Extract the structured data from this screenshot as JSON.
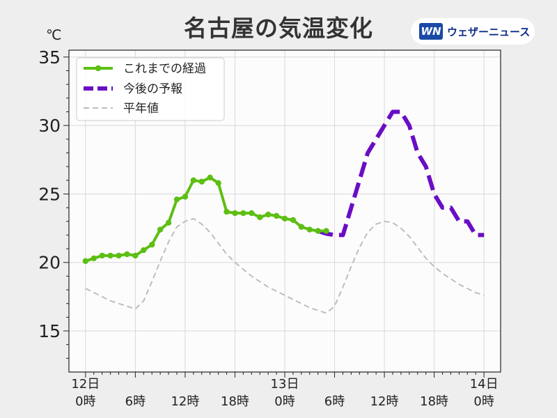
{
  "title": "名古屋の気温変化",
  "brand": {
    "logo": "WN",
    "name": "ウェザーニュース"
  },
  "unit": "℃",
  "colors": {
    "observed": "#5cbf12",
    "forecast": "#6a0dc4",
    "normal": "#bdbdbd"
  },
  "chart_data": {
    "type": "line",
    "title": "名古屋の気温変化",
    "ylabel": "℃",
    "ylim": [
      12,
      35.5
    ],
    "xlim": [
      -2,
      50
    ],
    "yticks": [
      15,
      20,
      25,
      30,
      35
    ],
    "grid": true,
    "legend_position": "top-left",
    "x_ticks": [
      {
        "x": 0,
        "label": "12日\n0時"
      },
      {
        "x": 6,
        "label": "6時"
      },
      {
        "x": 12,
        "label": "12時"
      },
      {
        "x": 18,
        "label": "18時"
      },
      {
        "x": 24,
        "label": "13日\n0時"
      },
      {
        "x": 30,
        "label": "6時"
      },
      {
        "x": 36,
        "label": "12時"
      },
      {
        "x": 42,
        "label": "18時"
      },
      {
        "x": 48,
        "label": "14日\n0時"
      }
    ],
    "series": [
      {
        "name": "これまでの経過",
        "style": "solid-markers",
        "x": [
          0,
          1,
          2,
          3,
          4,
          5,
          6,
          7,
          8,
          9,
          10,
          11,
          12,
          13,
          14,
          15,
          16,
          17,
          18,
          19,
          20,
          21,
          22,
          23,
          24,
          25,
          26,
          27,
          28,
          29
        ],
        "y": [
          20.1,
          20.3,
          20.5,
          20.5,
          20.5,
          20.6,
          20.5,
          20.9,
          21.3,
          22.4,
          22.9,
          24.6,
          24.8,
          26.0,
          25.9,
          26.2,
          25.8,
          23.7,
          23.6,
          23.6,
          23.6,
          23.3,
          23.5,
          23.4,
          23.2,
          23.1,
          22.6,
          22.4,
          22.3,
          22.3
        ]
      },
      {
        "name": "今後の予報",
        "style": "dashed",
        "x": [
          28,
          29,
          30,
          31,
          32,
          33,
          34,
          35,
          36,
          37,
          38,
          39,
          40,
          41,
          42,
          43,
          44,
          45,
          46,
          47,
          48
        ],
        "y": [
          22.3,
          22.1,
          22.0,
          22.0,
          24.0,
          26.0,
          28.0,
          29.0,
          30.0,
          31.0,
          31.0,
          30.0,
          28.0,
          27.0,
          25.0,
          24.0,
          24.0,
          23.0,
          23.0,
          22.0,
          22.0
        ]
      },
      {
        "name": "平年値",
        "style": "dashed",
        "x": [
          0,
          1,
          2,
          3,
          4,
          5,
          6,
          7,
          8,
          9,
          10,
          11,
          12,
          13,
          14,
          15,
          16,
          17,
          18,
          19,
          20,
          21,
          22,
          23,
          24,
          25,
          26,
          27,
          28,
          29,
          30,
          31,
          32,
          33,
          34,
          35,
          36,
          37,
          38,
          39,
          40,
          41,
          42,
          43,
          44,
          45,
          46,
          47,
          48
        ],
        "y": [
          18.1,
          17.8,
          17.5,
          17.2,
          17.0,
          16.8,
          16.6,
          17.2,
          18.6,
          20.1,
          21.5,
          22.6,
          23.0,
          23.2,
          22.8,
          22.2,
          21.4,
          20.6,
          20.0,
          19.5,
          19.0,
          18.6,
          18.2,
          17.9,
          17.6,
          17.3,
          17.0,
          16.7,
          16.5,
          16.3,
          16.8,
          18.2,
          19.7,
          21.1,
          22.2,
          22.8,
          23.0,
          22.9,
          22.5,
          21.9,
          21.1,
          20.3,
          19.7,
          19.2,
          18.8,
          18.4,
          18.1,
          17.8,
          17.6
        ]
      }
    ]
  }
}
